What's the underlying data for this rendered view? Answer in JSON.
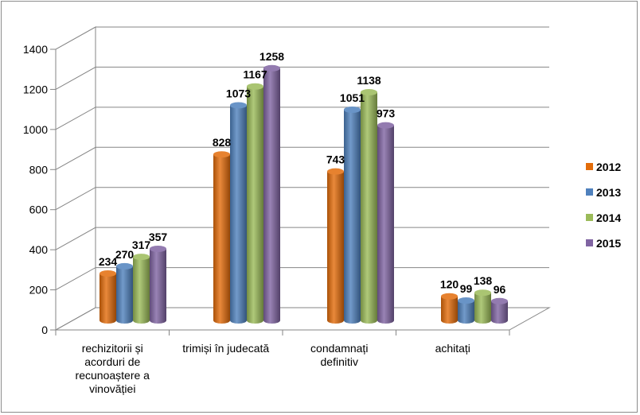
{
  "chart_data": {
    "type": "bar",
    "title": "",
    "xlabel": "",
    "ylabel": "",
    "categories": [
      [
        "rechizitorii și",
        "acorduri de",
        "recunoaștere a",
        "vinovăției"
      ],
      [
        "trimiși în judecată"
      ],
      [
        "condamnați",
        "definitiv"
      ],
      [
        "achitați"
      ]
    ],
    "series": [
      {
        "name": "2012",
        "color": "#e36c0a",
        "values": [
          234,
          828,
          743,
          120
        ]
      },
      {
        "name": "2013",
        "color": "#4f81bd",
        "values": [
          270,
          1073,
          1051,
          99
        ]
      },
      {
        "name": "2014",
        "color": "#9bbb59",
        "values": [
          317,
          1167,
          1138,
          138
        ]
      },
      {
        "name": "2015",
        "color": "#8064a2",
        "values": [
          357,
          1258,
          973,
          96
        ]
      }
    ],
    "ylim": [
      0,
      1400
    ],
    "yticks": [
      0,
      200,
      400,
      600,
      800,
      1000,
      1200,
      1400
    ],
    "grid": true,
    "legend_position": "right",
    "style": "3d-cylinder"
  }
}
